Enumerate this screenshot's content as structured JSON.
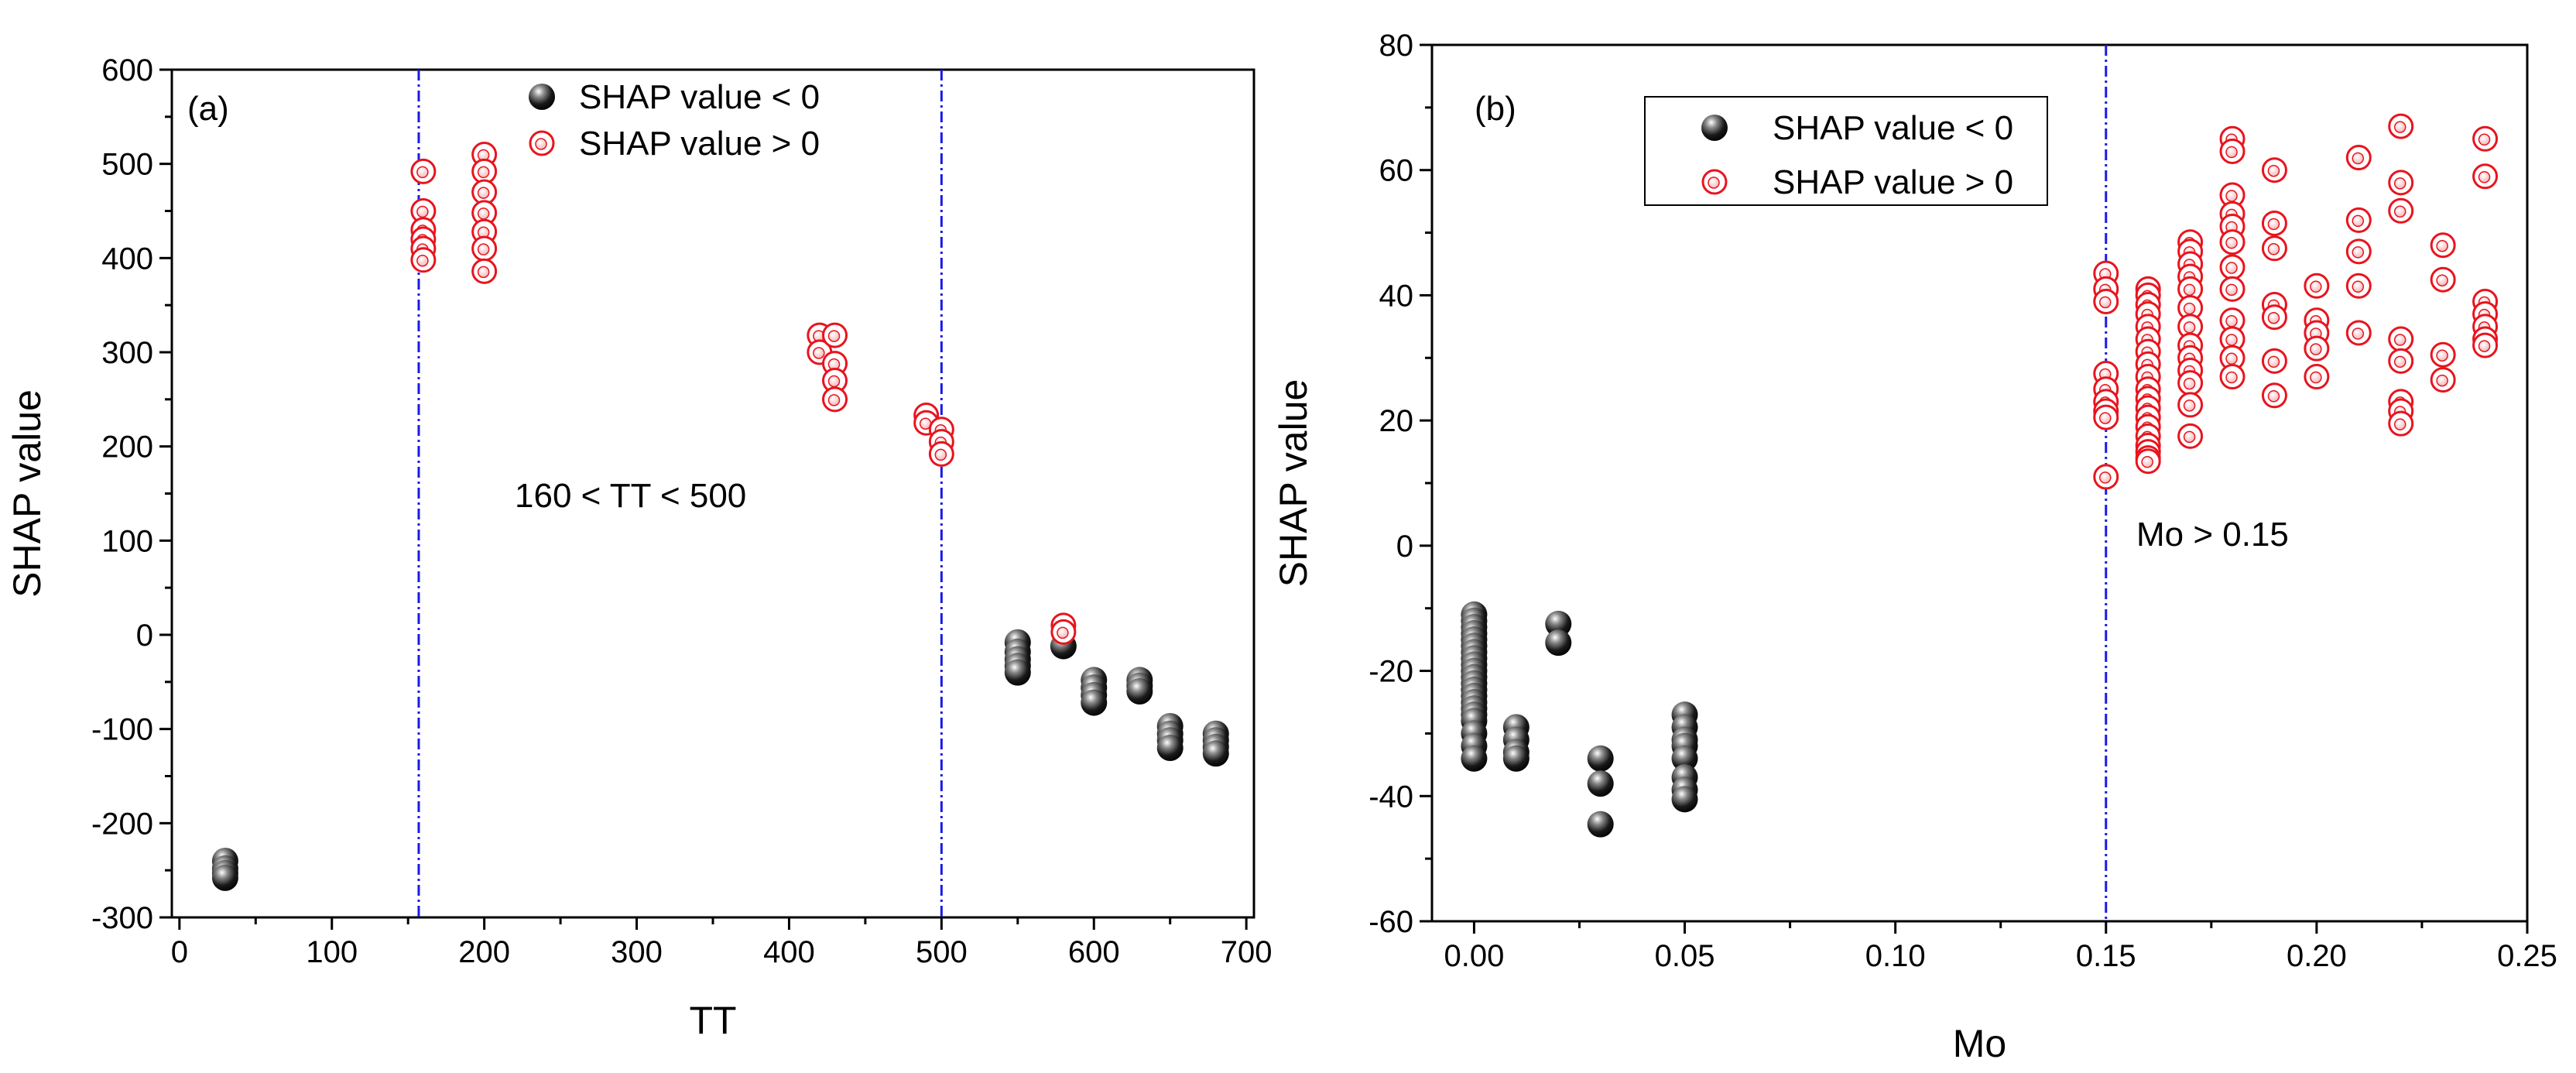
{
  "chart_data": [
    {
      "type": "scatter",
      "panel_label": "(a)",
      "xlabel": "TT",
      "ylabel": "SHAP value",
      "xlim": [
        -5,
        705
      ],
      "ylim": [
        -300,
        600
      ],
      "xticks": [
        0,
        100,
        200,
        300,
        400,
        500,
        600,
        700
      ],
      "yticks": [
        -300,
        -200,
        -100,
        0,
        100,
        200,
        300,
        400,
        500,
        600
      ],
      "vlines": [
        157,
        500
      ],
      "annotation": "160 < TT < 500",
      "legend_position": "top-right",
      "series": [
        {
          "name": "SHAP value < 0",
          "marker": "filled-sphere",
          "color": "#000000",
          "x": [
            30,
            30,
            30,
            30,
            550,
            550,
            550,
            550,
            550,
            580,
            600,
            600,
            600,
            600,
            630,
            630,
            630,
            650,
            650,
            650,
            650,
            680,
            680,
            680,
            680
          ],
          "y": [
            -240,
            -248,
            -253,
            -258,
            -8,
            -18,
            -26,
            -33,
            -40,
            -12,
            -48,
            -56,
            -64,
            -72,
            -48,
            -54,
            -60,
            -97,
            -105,
            -112,
            -120,
            -105,
            -112,
            -119,
            -126
          ]
        },
        {
          "name": "SHAP value > 0",
          "marker": "open-circle",
          "color": "#e8141e",
          "x": [
            160,
            160,
            160,
            160,
            160,
            160,
            200,
            200,
            200,
            200,
            200,
            200,
            200,
            420,
            420,
            430,
            430,
            430,
            430,
            490,
            490,
            500,
            500,
            500,
            580,
            580
          ],
          "y": [
            492,
            450,
            430,
            420,
            410,
            398,
            510,
            492,
            470,
            448,
            428,
            410,
            386,
            318,
            300,
            318,
            288,
            270,
            250,
            233,
            225,
            218,
            205,
            192,
            10,
            3
          ]
        }
      ]
    },
    {
      "type": "scatter",
      "panel_label": "(b)",
      "xlabel": "Mo",
      "ylabel": "SHAP value",
      "xlim": [
        -0.01,
        0.25
      ],
      "ylim": [
        -60,
        80
      ],
      "xticks": [
        "0.00",
        "0.05",
        "0.10",
        "0.15",
        "0.20",
        "0.25"
      ],
      "yticks": [
        -60,
        -40,
        -20,
        0,
        20,
        40,
        60,
        80
      ],
      "vlines": [
        0.15
      ],
      "annotation": "Mo > 0.15",
      "legend_position": "top-left",
      "series": [
        {
          "name": "SHAP value < 0",
          "marker": "filled-sphere",
          "color": "#000000",
          "x": [
            0,
            0,
            0,
            0,
            0,
            0,
            0,
            0,
            0,
            0,
            0,
            0,
            0,
            0,
            0,
            0,
            0,
            0,
            0,
            0,
            0,
            0.01,
            0.01,
            0.01,
            0.01,
            0.02,
            0.02,
            0.03,
            0.03,
            0.03,
            0.05,
            0.05,
            0.05,
            0.05,
            0.05,
            0.05,
            0.05,
            0.05
          ],
          "y": [
            -11,
            -12,
            -13,
            -14,
            -15,
            -16,
            -17,
            -18,
            -19,
            -20,
            -21,
            -22,
            -23,
            -24,
            -25,
            -26,
            -27,
            -28,
            -30,
            -32,
            -34,
            -29,
            -31,
            -33,
            -34,
            -12.5,
            -15.5,
            -34,
            -38,
            -44.5,
            -27,
            -29,
            -31,
            -32,
            -34,
            -37,
            -39,
            -40.5
          ]
        },
        {
          "name": "SHAP value > 0",
          "marker": "open-circle",
          "color": "#e8141e",
          "x": [
            0.15,
            0.15,
            0.15,
            0.15,
            0.15,
            0.15,
            0.15,
            0.15,
            0.15,
            0.16,
            0.16,
            0.16,
            0.16,
            0.16,
            0.16,
            0.16,
            0.16,
            0.16,
            0.16,
            0.16,
            0.16,
            0.16,
            0.16,
            0.16,
            0.16,
            0.16,
            0.16,
            0.16,
            0.17,
            0.17,
            0.17,
            0.17,
            0.17,
            0.17,
            0.17,
            0.17,
            0.17,
            0.17,
            0.17,
            0.17,
            0.17,
            0.18,
            0.18,
            0.18,
            0.18,
            0.18,
            0.18,
            0.18,
            0.18,
            0.18,
            0.18,
            0.18,
            0.18,
            0.19,
            0.19,
            0.19,
            0.19,
            0.19,
            0.19,
            0.19,
            0.2,
            0.2,
            0.2,
            0.2,
            0.2,
            0.21,
            0.21,
            0.21,
            0.21,
            0.21,
            0.22,
            0.22,
            0.22,
            0.22,
            0.22,
            0.22,
            0.22,
            0.22,
            0.23,
            0.23,
            0.23,
            0.23,
            0.24,
            0.24,
            0.24,
            0.24,
            0.24,
            0.24,
            0.24
          ],
          "y": [
            43.5,
            41,
            39,
            27.5,
            25,
            23,
            21.5,
            20.5,
            11,
            41,
            40,
            38.5,
            37,
            35,
            33,
            31,
            29,
            27,
            25,
            23.5,
            22,
            20.5,
            19,
            17.5,
            16,
            15,
            14,
            13.5,
            48.5,
            47,
            45,
            43,
            41,
            38,
            35,
            32,
            30,
            28,
            26,
            22.5,
            17.5,
            65,
            63,
            56,
            53,
            51,
            48.5,
            44.5,
            41,
            36,
            33,
            30,
            27,
            60,
            51.5,
            47.5,
            38.5,
            36.5,
            29.5,
            24,
            41.5,
            36,
            34,
            31.5,
            27,
            62,
            52,
            47,
            41.5,
            34,
            67,
            58,
            53.5,
            33,
            29.5,
            23,
            21.5,
            19.5,
            48,
            42.5,
            30.5,
            26.5,
            65,
            59,
            39,
            37,
            35,
            33,
            32
          ]
        }
      ]
    }
  ]
}
